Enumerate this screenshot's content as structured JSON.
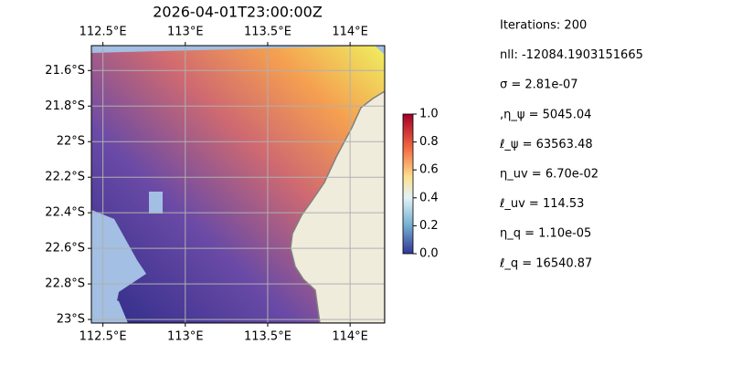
{
  "title": "2026-04-01T23:00:00Z",
  "map": {
    "xlim": [
      112.43,
      114.21
    ],
    "ylim": [
      -23.02,
      -21.46
    ],
    "xticks": [
      {
        "value": 112.5,
        "label": "112.5°E"
      },
      {
        "value": 113,
        "label": "113°E"
      },
      {
        "value": 113.5,
        "label": "113.5°E"
      },
      {
        "value": 114,
        "label": "114°E"
      }
    ],
    "yticks": [
      {
        "value": -21.6,
        "label": "21.6°S"
      },
      {
        "value": -21.8,
        "label": "21.8°S"
      },
      {
        "value": -22,
        "label": "22°S"
      },
      {
        "value": -22.2,
        "label": "22.2°S"
      },
      {
        "value": -22.4,
        "label": "22.4°S"
      },
      {
        "value": -22.6,
        "label": "22.6°S"
      },
      {
        "value": -22.8,
        "label": "22.8°S"
      },
      {
        "value": -23,
        "label": "23°S"
      }
    ]
  },
  "colorbar": {
    "lim": [
      0,
      1
    ],
    "ticks": [
      {
        "value": 0,
        "label": "0.0"
      },
      {
        "value": 0.2,
        "label": "0.2"
      },
      {
        "value": 0.4,
        "label": "0.4"
      },
      {
        "value": 0.6,
        "label": "0.6"
      },
      {
        "value": 0.8,
        "label": "0.8"
      },
      {
        "value": 1,
        "label": "1.0"
      }
    ]
  },
  "stats": [
    "Iterations: 200",
    "nll: -12084.1903151665",
    "σ = 2.81e-07",
    ",η_ψ = 5045.04",
    "ℓ_ψ = 63563.48",
    "η_uv = 6.70e-02",
    "ℓ_uv = 114.53",
    "η_q = 1.10e-05",
    "ℓ_q = 16540.87"
  ]
}
